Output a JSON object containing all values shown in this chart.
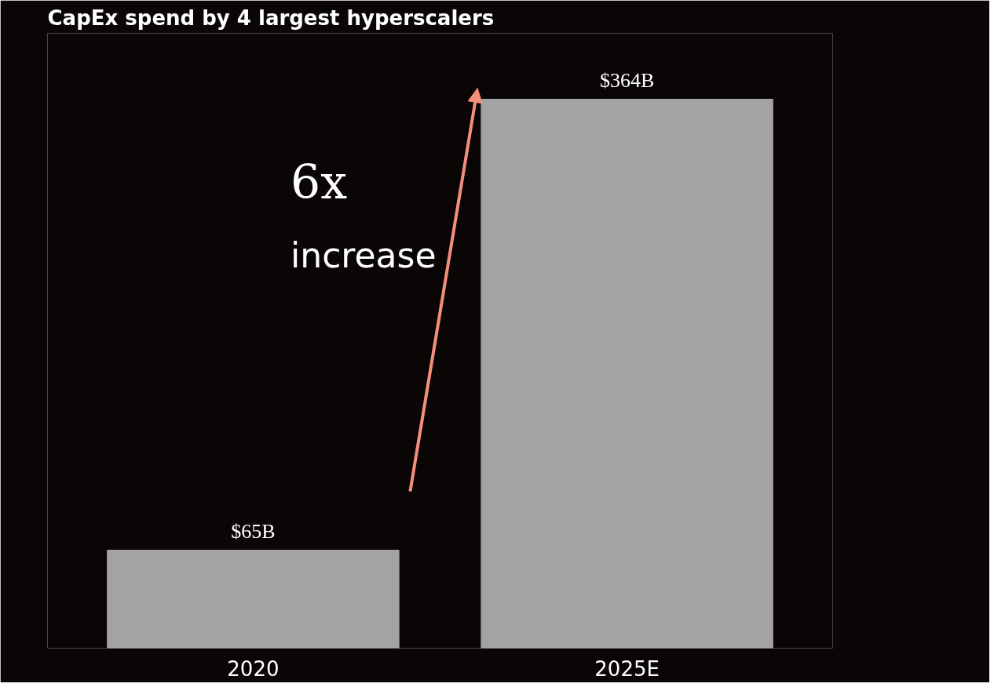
{
  "chart_data": {
    "type": "bar",
    "title": "CapEx spend by 4 largest hyperscalers",
    "categories": [
      "2020",
      "2025E"
    ],
    "values": [
      65,
      364
    ],
    "value_labels": [
      "$65B",
      "$364B"
    ],
    "color": "#a3a3a3",
    "annotations": [
      "6x",
      "increase"
    ],
    "grid": false
  }
}
